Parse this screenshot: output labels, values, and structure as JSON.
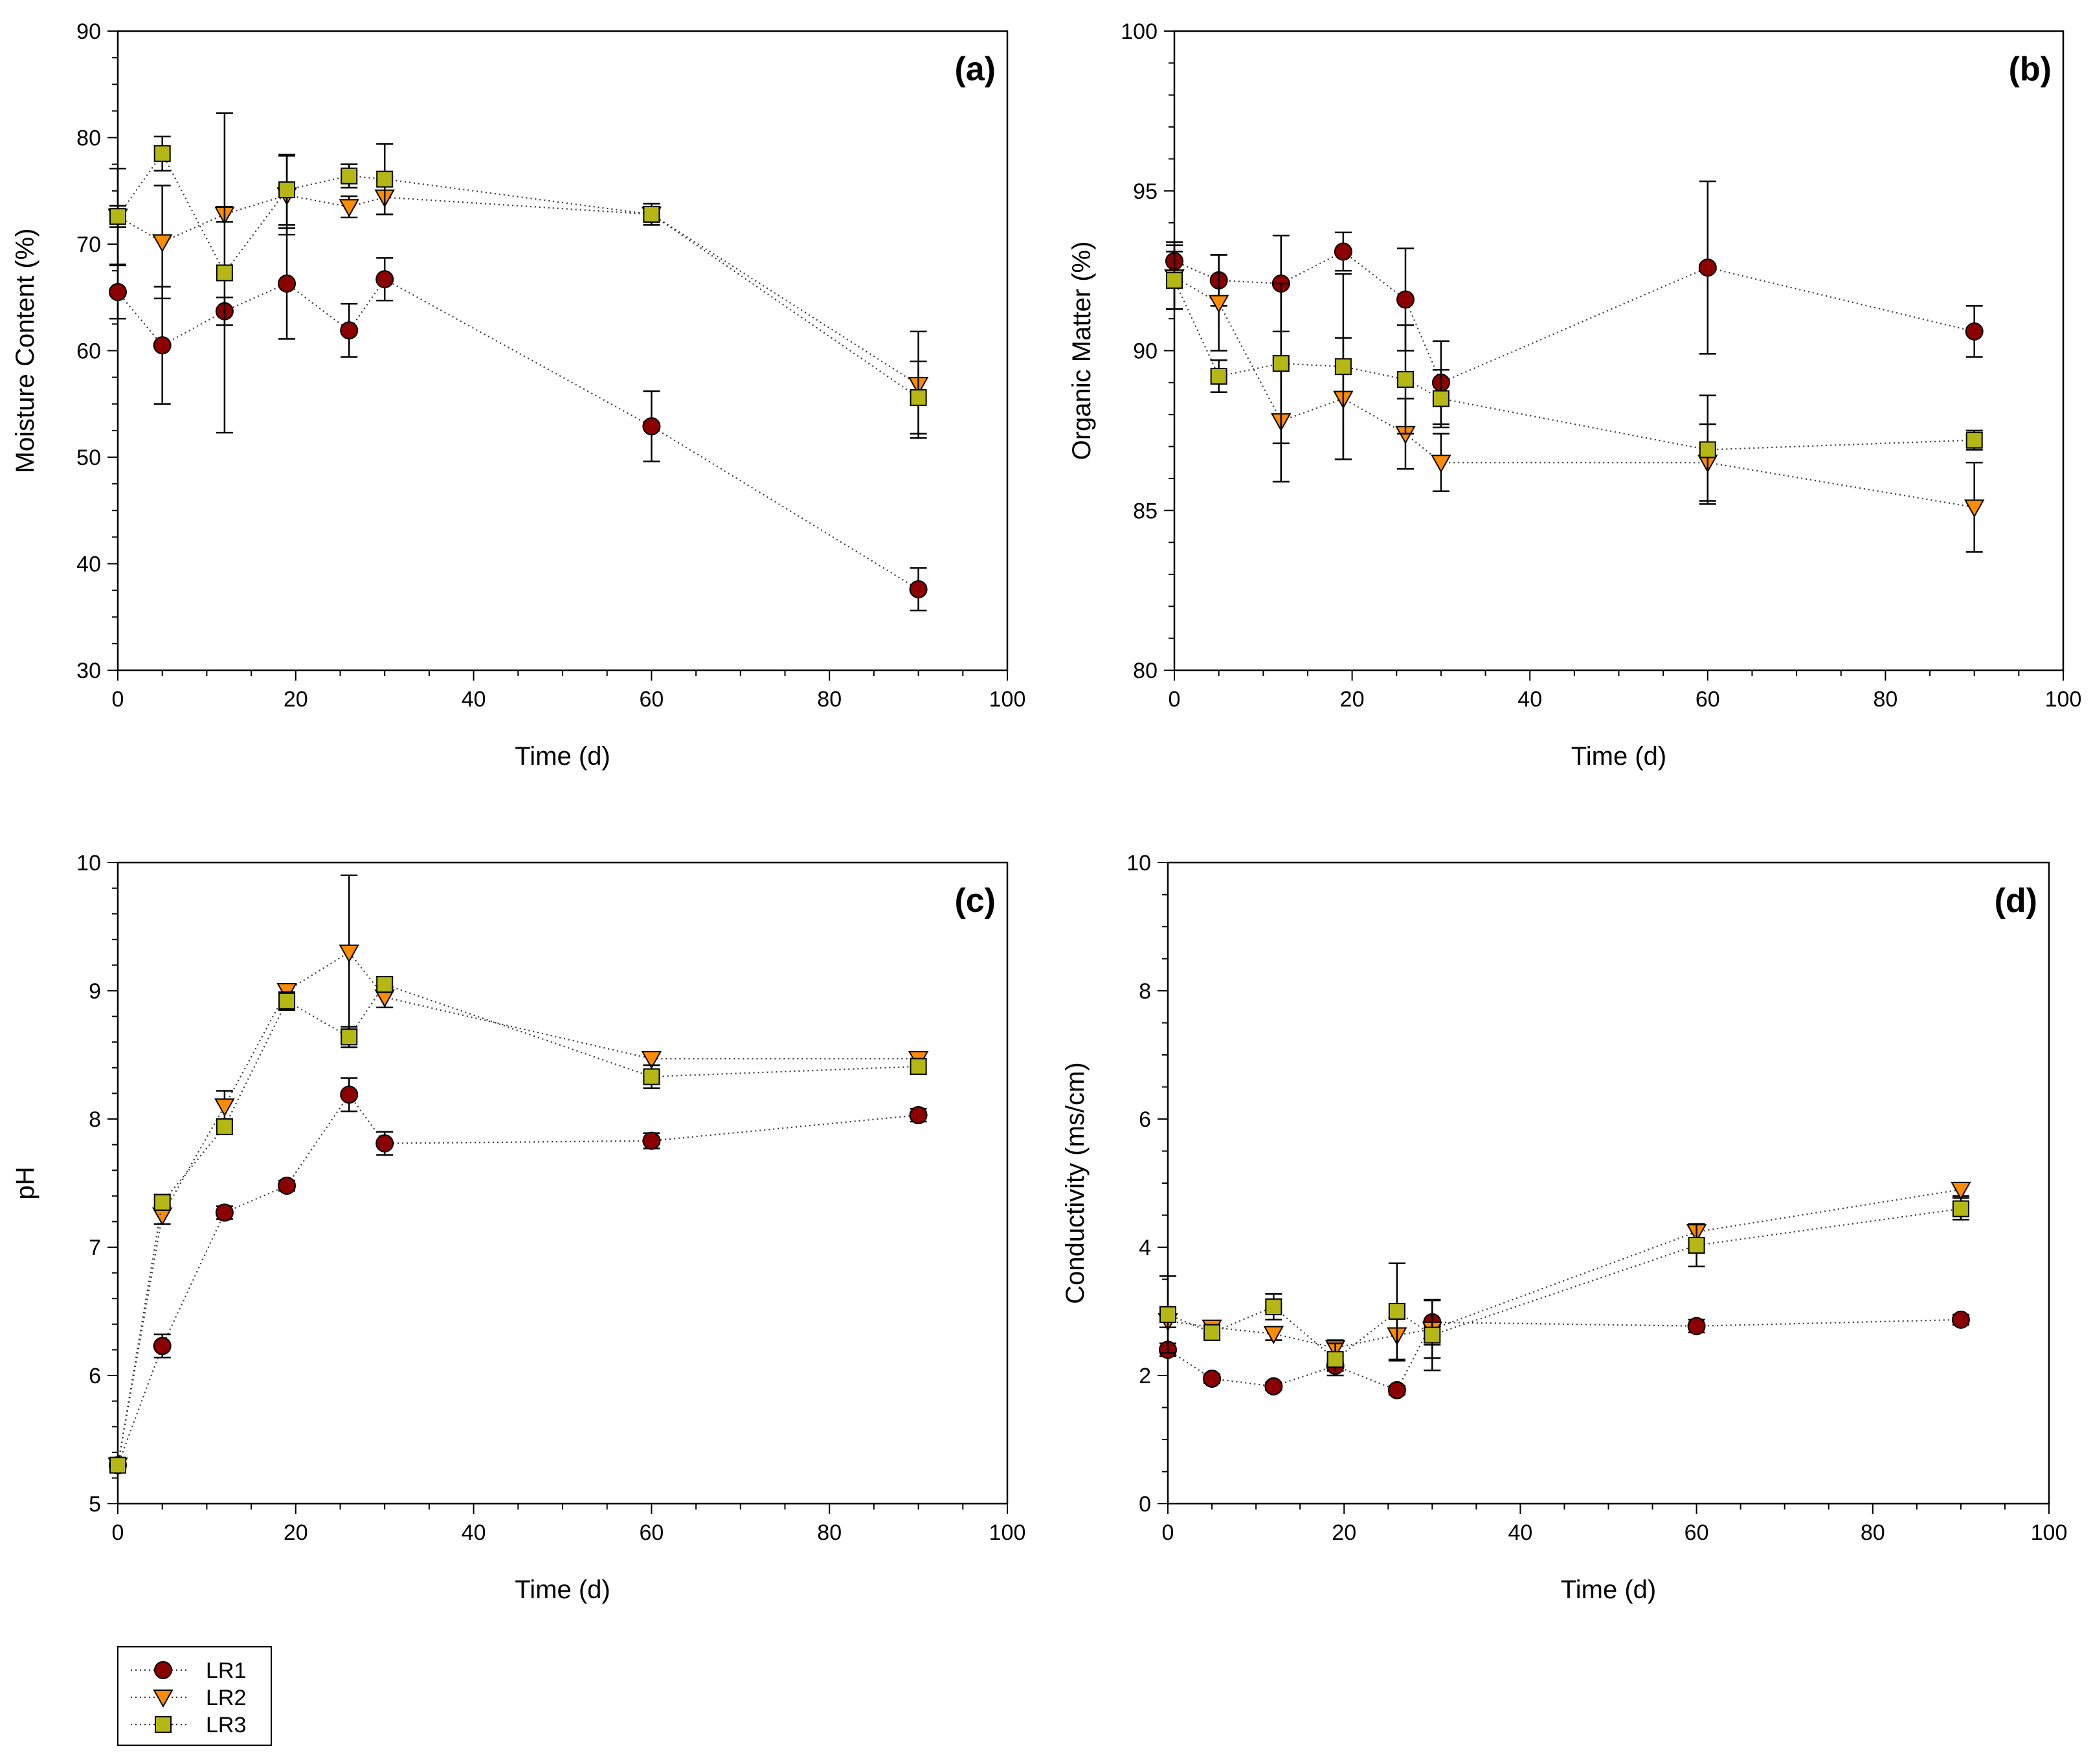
{
  "figure": {
    "type": "multi-panel scatter-line chart with error bars"
  },
  "legend": {
    "items": [
      {
        "label": "LR1",
        "marker": "circle",
        "color": "#8b0000"
      },
      {
        "label": "LR2",
        "marker": "triangle-down",
        "color": "#ff8c00"
      },
      {
        "label": "LR3",
        "marker": "square",
        "color": "#b5b814"
      }
    ]
  },
  "chart_data": [
    {
      "type": "scatter",
      "panel_label": "(a)",
      "xlabel": "Time (d)",
      "ylabel": "Moisture Content (%)",
      "xlim": [
        0,
        100
      ],
      "ylim": [
        30,
        90
      ],
      "xticks": [
        0,
        20,
        40,
        60,
        80,
        100
      ],
      "yticks": [
        30,
        40,
        50,
        60,
        70,
        80,
        90
      ],
      "grid": false,
      "x": [
        0,
        5,
        12,
        19,
        26,
        30,
        60,
        90
      ],
      "series": [
        {
          "name": "LR1",
          "values": [
            65.5,
            60.5,
            63.7,
            66.3,
            61.9,
            66.7,
            52.9,
            37.6
          ],
          "errors": [
            2.5,
            5.5,
            1.3,
            5.2,
            2.5,
            2.0,
            3.3,
            2.0
          ]
        },
        {
          "name": "LR2",
          "values": [
            72.6,
            70.2,
            72.8,
            74.6,
            73.5,
            74.4,
            72.8,
            56.8
          ],
          "errors": [
            4.5,
            5.3,
            0.7,
            3.7,
            1.0,
            1.6,
            0.7,
            5.0
          ]
        },
        {
          "name": "LR3",
          "values": [
            72.6,
            78.5,
            67.3,
            75.1,
            76.4,
            76.1,
            72.8,
            55.6
          ],
          "errors": [
            1.0,
            1.6,
            15.0,
            3.3,
            1.1,
            3.3,
            1.0,
            3.4
          ]
        }
      ]
    },
    {
      "type": "scatter",
      "panel_label": "(b)",
      "xlabel": "Time (d)",
      "ylabel": "Organic Matter (%)",
      "xlim": [
        0,
        100
      ],
      "ylim": [
        80,
        100
      ],
      "xticks": [
        0,
        20,
        40,
        60,
        80,
        100
      ],
      "yticks": [
        80,
        85,
        90,
        95,
        100
      ],
      "grid": false,
      "x": [
        0,
        5,
        12,
        19,
        26,
        30,
        60,
        90
      ],
      "series": [
        {
          "name": "LR1",
          "values": [
            92.8,
            92.2,
            92.1,
            93.1,
            91.6,
            89.0,
            92.6,
            90.6
          ],
          "errors": [
            0.6,
            0.8,
            1.5,
            0.6,
            1.6,
            1.3,
            2.7,
            0.8
          ]
        },
        {
          "name": "LR2",
          "values": [
            92.3,
            91.5,
            87.8,
            88.5,
            87.4,
            86.5,
            86.5,
            85.1
          ],
          "errors": [
            1.0,
            1.5,
            1.9,
            1.9,
            1.1,
            0.9,
            1.2,
            1.4
          ]
        },
        {
          "name": "LR3",
          "values": [
            92.2,
            89.2,
            89.6,
            89.5,
            89.1,
            88.5,
            86.9,
            87.2
          ],
          "errors": [
            0.9,
            0.5,
            2.5,
            2.9,
            1.7,
            0.9,
            1.7,
            0.3
          ]
        }
      ]
    },
    {
      "type": "scatter",
      "panel_label": "(c)",
      "xlabel": "Time (d)",
      "ylabel": "pH",
      "xlim": [
        0,
        100
      ],
      "ylim": [
        5,
        10
      ],
      "xticks": [
        0,
        20,
        40,
        60,
        80,
        100
      ],
      "yticks": [
        5,
        6,
        7,
        8,
        9,
        10
      ],
      "grid": false,
      "x": [
        0,
        5,
        12,
        19,
        26,
        30,
        60,
        90
      ],
      "series": [
        {
          "name": "LR1",
          "values": [
            5.3,
            6.23,
            7.27,
            7.48,
            8.19,
            7.81,
            7.83,
            8.03
          ],
          "errors": [
            0.05,
            0.09,
            0.05,
            0.04,
            0.13,
            0.09,
            0.06,
            0.05
          ]
        },
        {
          "name": "LR2",
          "values": [
            5.3,
            7.25,
            8.1,
            9.0,
            9.3,
            8.95,
            8.47,
            8.47
          ],
          "errors": [
            0.05,
            0.07,
            0.12,
            0.05,
            0.6,
            0.08,
            0.05,
            0.05
          ]
        },
        {
          "name": "LR3",
          "values": [
            5.3,
            7.35,
            7.94,
            8.92,
            8.64,
            9.05,
            8.33,
            8.41
          ],
          "errors": [
            0.05,
            0.06,
            0.06,
            0.07,
            0.08,
            0.06,
            0.09,
            0.06
          ]
        }
      ]
    },
    {
      "type": "scatter",
      "panel_label": "(d)",
      "xlabel": "Time (d)",
      "ylabel": "Conductivity (ms/cm)",
      "xlim": [
        0,
        100
      ],
      "ylim": [
        0,
        10
      ],
      "xticks": [
        0,
        20,
        40,
        60,
        80,
        100
      ],
      "yticks": [
        0,
        2,
        4,
        6,
        8,
        10
      ],
      "grid": false,
      "x": [
        0,
        5,
        12,
        19,
        26,
        30,
        60,
        90
      ],
      "series": [
        {
          "name": "LR1",
          "values": [
            2.4,
            1.95,
            1.83,
            2.15,
            1.77,
            2.83,
            2.77,
            2.87
          ],
          "errors": [
            0.1,
            0.07,
            0.06,
            0.08,
            0.07,
            0.35,
            0.1,
            0.08
          ]
        },
        {
          "name": "LR2",
          "values": [
            2.85,
            2.75,
            2.65,
            2.43,
            2.63,
            2.72,
            4.24,
            4.9
          ],
          "errors": [
            0.1,
            0.1,
            0.1,
            0.12,
            0.4,
            0.45,
            0.12,
            0.1
          ]
        },
        {
          "name": "LR3",
          "values": [
            2.95,
            2.67,
            3.07,
            2.25,
            3.0,
            2.63,
            4.03,
            4.6
          ],
          "errors": [
            0.6,
            0.12,
            0.2,
            0.25,
            0.75,
            0.55,
            0.33,
            0.17
          ]
        }
      ]
    }
  ]
}
